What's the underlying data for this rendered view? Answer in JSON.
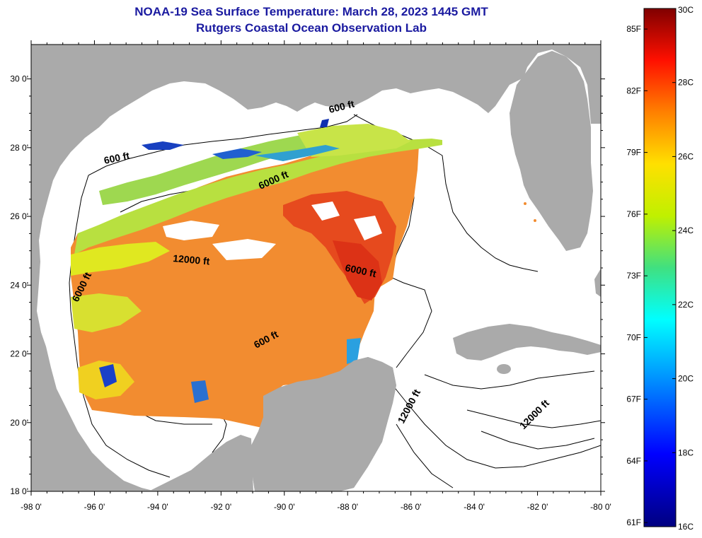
{
  "header": {
    "title": "NOAA-19 Sea Surface Temperature:  March 28, 2023 1445 GMT",
    "subtitle": "Rutgers Coastal Ocean Observation Lab"
  },
  "axes": {
    "x_ticks": [
      "-98 0'",
      "-96 0'",
      "-94 0'",
      "-92 0'",
      "-90 0'",
      "-88 0'",
      "-86 0'",
      "-84 0'",
      "-82 0'",
      "-80 0'"
    ],
    "y_ticks": [
      "30 0'",
      "28 0'",
      "26 0'",
      "24 0'",
      "22 0'",
      "20 0'",
      "18 0'"
    ],
    "lon_range": [
      -98,
      -80
    ],
    "lat_range": [
      18,
      31
    ]
  },
  "contour_labels": [
    "600 ft",
    "600 ft",
    "6000 ft",
    "12000 ft",
    "6000 ft",
    "6000 ft",
    "600 ft",
    "12000 ft",
    "12000 ft"
  ],
  "colorbar": {
    "fahrenheit_labels": [
      "85F",
      "82F",
      "79F",
      "76F",
      "73F",
      "70F",
      "67F",
      "64F",
      "61F"
    ],
    "celsius_labels": [
      "30C",
      "28C",
      "26C",
      "24C",
      "22C",
      "20C",
      "18C",
      "16C"
    ],
    "range_c": [
      16,
      30
    ]
  },
  "colors": {
    "land": "#aaaaaa",
    "ocean": "#ffffff",
    "title": "#1a1aa0",
    "warm": "#f08a2a",
    "hot": "#e03a1a",
    "cool": "#a8e048"
  }
}
